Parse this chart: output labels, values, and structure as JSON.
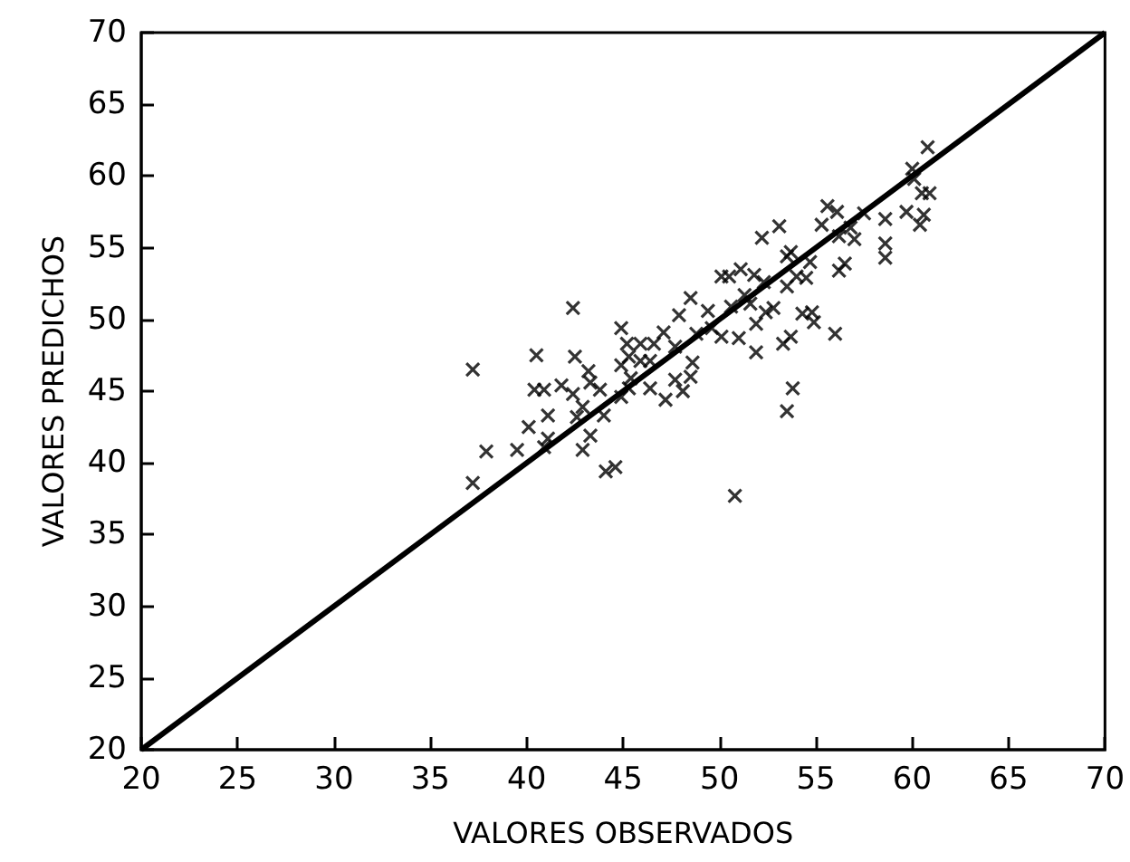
{
  "chart_data": {
    "type": "scatter",
    "xlabel": "VALORES OBSERVADOS",
    "ylabel": "VALORES PREDICHOS",
    "xlim": [
      20,
      70
    ],
    "ylim": [
      20,
      70
    ],
    "xticks": [
      20,
      25,
      30,
      35,
      40,
      45,
      50,
      55,
      60,
      65,
      70
    ],
    "yticks": [
      20,
      25,
      30,
      35,
      40,
      45,
      50,
      55,
      60,
      65,
      70
    ],
    "grid": false,
    "marker": "cross",
    "x": [
      37.2,
      37.2,
      37.9,
      39.5,
      40.1,
      40.5,
      40.4,
      40.9,
      41.1,
      41.1,
      40.9,
      41.8,
      42.4,
      42.5,
      42.4,
      42.6,
      42.9,
      42.9,
      43.2,
      43.3,
      43.3,
      43.8,
      44.0,
      44.1,
      44.6,
      44.9,
      44.9,
      44.9,
      45.2,
      45.3,
      45.3,
      45.4,
      45.9,
      45.9,
      46.4,
      46.4,
      46.6,
      47.1,
      47.2,
      47.7,
      47.7,
      47.9,
      48.1,
      48.5,
      48.6,
      48.5,
      48.8,
      49.4,
      49.6,
      50.1,
      50.1,
      50.5,
      50.6,
      50.8,
      51.0,
      51.1,
      51.3,
      51.6,
      51.8,
      51.9,
      51.9,
      52.2,
      52.3,
      52.4,
      52.8,
      53.1,
      53.3,
      53.5,
      53.5,
      53.5,
      53.7,
      53.8,
      53.7,
      54.0,
      54.3,
      54.5,
      54.7,
      54.8,
      54.9,
      55.3,
      55.6,
      56.0,
      56.1,
      56.2,
      56.2,
      56.5,
      56.8,
      57.0,
      57.5,
      58.6,
      58.6,
      58.6,
      59.7,
      60.0,
      60.1,
      60.4,
      60.6,
      60.5,
      60.8,
      60.9
    ],
    "series": [
      {
        "color": "#000000",
        "values": [
          46.5,
          38.6,
          40.8,
          40.9,
          42.5,
          47.5,
          45.1,
          45.1,
          43.3,
          41.7,
          41.1,
          45.4,
          50.8,
          47.4,
          44.8,
          43.2,
          40.9,
          43.9,
          46.4,
          45.6,
          41.9,
          45.1,
          43.3,
          39.4,
          39.7,
          49.4,
          46.8,
          44.6,
          48.3,
          47.4,
          45.2,
          45.9,
          48.3,
          47.1,
          47.1,
          45.2,
          48.3,
          49.1,
          44.4,
          48.1,
          45.8,
          50.3,
          45.0,
          51.5,
          47.0,
          46.0,
          49.0,
          50.6,
          49.4,
          48.8,
          53.0,
          53.0,
          50.9,
          37.7,
          48.7,
          53.5,
          51.7,
          51.1,
          53.1,
          49.7,
          47.7,
          55.7,
          52.6,
          50.5,
          50.8,
          56.5,
          48.3,
          52.3,
          54.4,
          43.6,
          54.7,
          45.2,
          48.8,
          53.0,
          50.4,
          52.9,
          54.0,
          50.5,
          49.8,
          56.6,
          57.9,
          49.0,
          57.5,
          55.8,
          53.4,
          53.9,
          56.4,
          55.6,
          57.4,
          57.0,
          55.3,
          54.3,
          57.5,
          60.5,
          59.8,
          56.6,
          57.3,
          58.8,
          62.0,
          58.8
        ]
      },
      {
        "type": "line",
        "x": [
          20,
          70
        ],
        "color": "#000000",
        "marker": "none",
        "values": [
          20,
          70
        ]
      }
    ]
  }
}
